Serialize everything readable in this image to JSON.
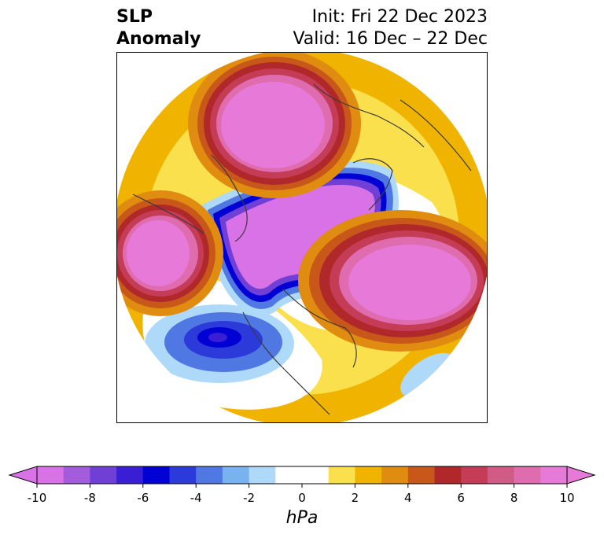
{
  "title": {
    "left_line1": "SLP",
    "left_line2": "Anomaly",
    "right_line1": "Init: Fri 22 Dec 2023",
    "right_line2": "Valid: 16 Dec – 22 Dec"
  },
  "colorbar": {
    "unit": "hPa",
    "ticks": [
      "-10",
      "-8",
      "-6",
      "-4",
      "-2",
      "0",
      "2",
      "4",
      "6",
      "8",
      "10"
    ],
    "colors": [
      "#d872e6",
      "#a25cdc",
      "#6f3fd6",
      "#3a1ed6",
      "#0000d4",
      "#2c3ad9",
      "#4f78e3",
      "#78b2f0",
      "#aed9f8",
      "#ffffff",
      "#ffffff",
      "#fbe04e",
      "#f0b400",
      "#e08c10",
      "#c8581a",
      "#b0282a",
      "#c43c56",
      "#d05c86",
      "#de6cae",
      "#e77ad8"
    ],
    "extend_low_color": "#d872e6",
    "extend_high_color": "#e77ad8"
  },
  "map": {
    "projection": "north polar stereographic",
    "field": "sea level pressure anomaly",
    "features": [
      {
        "name": "positive anomaly over Europe / north Atlantic",
        "sign": "positive",
        "peak_hpa": 10
      },
      {
        "name": "positive anomaly over north Pacific / Aleutians",
        "sign": "positive",
        "peak_hpa": 10
      },
      {
        "name": "positive anomaly over Siberia",
        "sign": "positive",
        "peak_hpa": 10
      },
      {
        "name": "negative anomaly over Arctic / Greenland",
        "sign": "negative",
        "peak_hpa": -10
      },
      {
        "name": "negative anomaly over western Canada",
        "sign": "negative",
        "peak_hpa": -8
      }
    ]
  }
}
